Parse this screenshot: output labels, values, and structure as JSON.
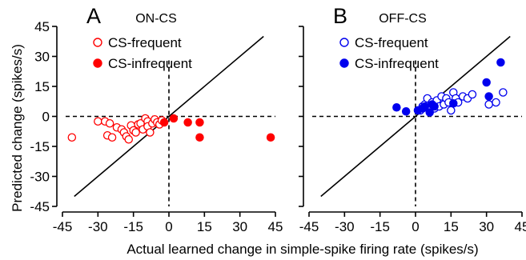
{
  "figure": {
    "ylabel": "Predicted change (spikes/s)",
    "xlabel": "Actual learned change in simple-spike firing rate (spikes/s)"
  },
  "chart_data": [
    {
      "type": "scatter",
      "panel_letter": "A",
      "title": "ON-CS",
      "xlim": [
        -45,
        45
      ],
      "ylim": [
        -45,
        45
      ],
      "xticks": [
        "-45",
        "-30",
        "-15",
        "0",
        "15",
        "30",
        "45"
      ],
      "yticks": [
        "45",
        "30",
        "15",
        "0",
        "-15",
        "-30",
        "-45"
      ],
      "xtick_values": [
        -45,
        -30,
        -15,
        0,
        15,
        30,
        45
      ],
      "ytick_values": [
        45,
        30,
        15,
        0,
        -15,
        -30,
        -45
      ],
      "color": "#ff0000",
      "reference_lines": {
        "zero_lines": "dashed",
        "identity_line": [
          [
            -40,
            -40
          ],
          [
            40,
            40
          ]
        ]
      },
      "legend_position": "top-left",
      "series": [
        {
          "name": "CS-frequent",
          "marker": "open-circle",
          "points": [
            [
              -41,
              -10.5
            ],
            [
              -30,
              -2.5
            ],
            [
              -27,
              -2.5
            ],
            [
              -25,
              -3.5
            ],
            [
              -26,
              -9.5
            ],
            [
              -24,
              -10.5
            ],
            [
              -22,
              -5.5
            ],
            [
              -20,
              -6.5
            ],
            [
              -19,
              -8
            ],
            [
              -18,
              -10
            ],
            [
              -17,
              -11.5
            ],
            [
              -16,
              -4.5
            ],
            [
              -15,
              -7
            ],
            [
              -14,
              -8
            ],
            [
              -13,
              -4
            ],
            [
              -12,
              -3.5
            ],
            [
              -11,
              -6.5
            ],
            [
              -10,
              -1
            ],
            [
              -9,
              -2.5
            ],
            [
              -9,
              -5
            ],
            [
              -8,
              -8
            ],
            [
              -7,
              -3.5
            ],
            [
              -6,
              -1.5
            ],
            [
              -5,
              -3
            ],
            [
              -4,
              -4
            ],
            [
              -3,
              -2
            ]
          ]
        },
        {
          "name": "CS-infrequent",
          "marker": "filled-circle",
          "points": [
            [
              -2,
              -3
            ],
            [
              2,
              -1
            ],
            [
              8,
              -3
            ],
            [
              13,
              -3
            ],
            [
              13,
              -10.5
            ],
            [
              43,
              -10.5
            ]
          ]
        }
      ]
    },
    {
      "type": "scatter",
      "panel_letter": "B",
      "title": "OFF-CS",
      "xlim": [
        -45,
        45
      ],
      "ylim": [
        -45,
        45
      ],
      "xticks": [
        "-45",
        "-30",
        "-15",
        "0",
        "15",
        "30",
        "45"
      ],
      "yticks": [
        "45",
        "30",
        "15",
        "0",
        "-15",
        "-30",
        "-45"
      ],
      "xtick_values": [
        -45,
        -30,
        -15,
        0,
        15,
        30,
        45
      ],
      "ytick_values": [
        45,
        30,
        15,
        0,
        -15,
        -30,
        -45
      ],
      "color": "#0000ee",
      "reference_lines": {
        "zero_lines": "dashed",
        "identity_line": [
          [
            -40,
            -40
          ],
          [
            40,
            40
          ]
        ]
      },
      "legend_position": "top-left",
      "series": [
        {
          "name": "CS-frequent",
          "marker": "open-circle",
          "points": [
            [
              2,
              3
            ],
            [
              3,
              5
            ],
            [
              4,
              6
            ],
            [
              5,
              9
            ],
            [
              6,
              3
            ],
            [
              7,
              7
            ],
            [
              8,
              4
            ],
            [
              9,
              8
            ],
            [
              10,
              5
            ],
            [
              11,
              10
            ],
            [
              12,
              6
            ],
            [
              13,
              9
            ],
            [
              14,
              7
            ],
            [
              15,
              3
            ],
            [
              16,
              12
            ],
            [
              17,
              9
            ],
            [
              18,
              7
            ],
            [
              20,
              10
            ],
            [
              22,
              9
            ],
            [
              24,
              11
            ],
            [
              31,
              6
            ],
            [
              34,
              7
            ],
            [
              37,
              12
            ]
          ]
        },
        {
          "name": "CS-infrequent",
          "marker": "filled-circle",
          "points": [
            [
              -8,
              4.5
            ],
            [
              -4,
              2.5
            ],
            [
              1,
              3
            ],
            [
              3,
              4
            ],
            [
              4,
              5
            ],
            [
              6,
              2
            ],
            [
              7,
              6
            ],
            [
              8,
              5
            ],
            [
              16,
              6.5
            ],
            [
              30,
              17
            ],
            [
              31,
              10
            ],
            [
              36,
              27
            ]
          ]
        }
      ]
    }
  ]
}
